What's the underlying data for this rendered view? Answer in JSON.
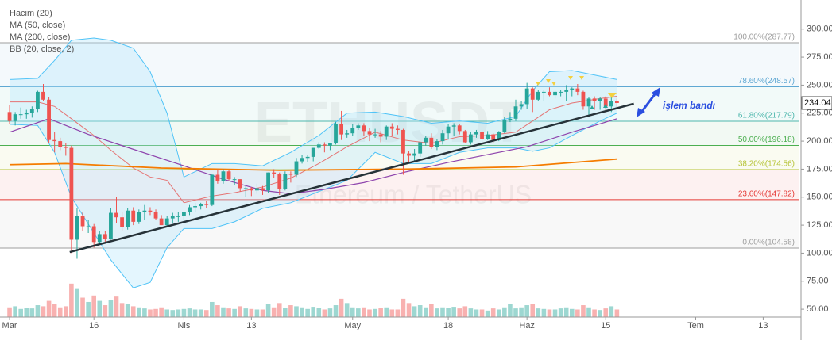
{
  "chart_data": {
    "type": "candlestick",
    "watermark": {
      "symbol": "ETHUSDT",
      "description": "Ethereum / TetherUS"
    },
    "legend": [
      "Hacim (20)",
      "MA (50, close)",
      "MA (200, close)",
      "BB (20, close, 2)"
    ],
    "xlim": [
      -1.7,
      140.3
    ],
    "xticks": [
      {
        "value": 0,
        "label": "Mar"
      },
      {
        "value": 15,
        "label": "16"
      },
      {
        "value": 31,
        "label": "Nis"
      },
      {
        "value": 43,
        "label": "13"
      },
      {
        "value": 61,
        "label": "May"
      },
      {
        "value": 78,
        "label": "18"
      },
      {
        "value": 92,
        "label": "Haz"
      },
      {
        "value": 106,
        "label": "15"
      },
      {
        "value": 122,
        "label": "Tem"
      },
      {
        "value": 134,
        "label": "13"
      }
    ],
    "ylim": [
      43,
      326
    ],
    "yticks": [
      {
        "value": 300,
        "label": "300.00"
      },
      {
        "value": 275,
        "label": "275.00"
      },
      {
        "value": 250,
        "label": "250.00"
      },
      {
        "value": 225,
        "label": "225.00"
      },
      {
        "value": 200,
        "label": "200.00"
      },
      {
        "value": 175,
        "label": "175.00"
      },
      {
        "value": 150,
        "label": "150.00"
      },
      {
        "value": 125,
        "label": "125.00"
      },
      {
        "value": 100,
        "label": "100.00"
      },
      {
        "value": 75,
        "label": "75.00"
      },
      {
        "value": 50,
        "label": "50.00"
      }
    ],
    "up_color": "#26a69a",
    "down_color": "#ef5350",
    "last_price": 234.04,
    "ohlc": [
      [
        226,
        232,
        215,
        218
      ],
      [
        218,
        226,
        214,
        224
      ],
      [
        224,
        230,
        220,
        224
      ],
      [
        224,
        228,
        220,
        225
      ],
      [
        225,
        231,
        221,
        229
      ],
      [
        229,
        245,
        226,
        244
      ],
      [
        244,
        251,
        236,
        237
      ],
      [
        237,
        239,
        198,
        201
      ],
      [
        201,
        208,
        190,
        200
      ],
      [
        200,
        203,
        192,
        195
      ],
      [
        195,
        198,
        187,
        194
      ],
      [
        194,
        196,
        100,
        112
      ],
      [
        112,
        140,
        95,
        133
      ],
      [
        133,
        137,
        120,
        124
      ],
      [
        124,
        130,
        118,
        124
      ],
      [
        124,
        126,
        105,
        110
      ],
      [
        110,
        120,
        108,
        117
      ],
      [
        117,
        120,
        110,
        113
      ],
      [
        113,
        140,
        112,
        136
      ],
      [
        136,
        150,
        127,
        132
      ],
      [
        132,
        137,
        120,
        123
      ],
      [
        123,
        140,
        121,
        138
      ],
      [
        138,
        141,
        125,
        128
      ],
      [
        128,
        139,
        126,
        137
      ],
      [
        137,
        143,
        130,
        138
      ],
      [
        138,
        141,
        134,
        137
      ],
      [
        137,
        139,
        130,
        131
      ],
      [
        131,
        134,
        125,
        125
      ],
      [
        125,
        133,
        123,
        131
      ],
      [
        131,
        136,
        127,
        133
      ],
      [
        133,
        137,
        128,
        133
      ],
      [
        133,
        137,
        128,
        137
      ],
      [
        137,
        143,
        134,
        141
      ],
      [
        141,
        145,
        137,
        142
      ],
      [
        142,
        145,
        139,
        144
      ],
      [
        144,
        147,
        140,
        143
      ],
      [
        143,
        171,
        142,
        170
      ],
      [
        170,
        175,
        162,
        164
      ],
      [
        164,
        175,
        162,
        173
      ],
      [
        173,
        174,
        165,
        166
      ],
      [
        166,
        168,
        161,
        166
      ],
      [
        166,
        166,
        155,
        158
      ],
      [
        158,
        160,
        150,
        158
      ],
      [
        158,
        159,
        151,
        156
      ],
      [
        156,
        162,
        153,
        158
      ],
      [
        158,
        160,
        152,
        156
      ],
      [
        156,
        172,
        154,
        172
      ],
      [
        172,
        175,
        167,
        171
      ],
      [
        171,
        172,
        152,
        157
      ],
      [
        157,
        173,
        156,
        171
      ],
      [
        171,
        173,
        163,
        170
      ],
      [
        170,
        185,
        168,
        182
      ],
      [
        182,
        188,
        180,
        185
      ],
      [
        185,
        188,
        181,
        186
      ],
      [
        186,
        194,
        182,
        194
      ],
      [
        194,
        199,
        193,
        197
      ],
      [
        197,
        199,
        190,
        196
      ],
      [
        196,
        198,
        192,
        198
      ],
      [
        198,
        217,
        197,
        215
      ],
      [
        215,
        227,
        201,
        206
      ],
      [
        206,
        210,
        203,
        207
      ],
      [
        207,
        215,
        205,
        212
      ],
      [
        212,
        216,
        210,
        214
      ],
      [
        214,
        216,
        205,
        209
      ],
      [
        209,
        212,
        200,
        206
      ],
      [
        206,
        211,
        203,
        206
      ],
      [
        206,
        209,
        199,
        204
      ],
      [
        204,
        214,
        201,
        213
      ],
      [
        213,
        216,
        205,
        211
      ],
      [
        211,
        214,
        206,
        210
      ],
      [
        210,
        211,
        170,
        189
      ],
      [
        189,
        191,
        180,
        187
      ],
      [
        187,
        193,
        181,
        189
      ],
      [
        189,
        199,
        186,
        199
      ],
      [
        199,
        205,
        196,
        203
      ],
      [
        203,
        207,
        193,
        195
      ],
      [
        195,
        202,
        192,
        200
      ],
      [
        200,
        210,
        197,
        207
      ],
      [
        207,
        215,
        202,
        213
      ],
      [
        213,
        216,
        205,
        214
      ],
      [
        214,
        215,
        206,
        209
      ],
      [
        209,
        210,
        198,
        199
      ],
      [
        199,
        208,
        197,
        206
      ],
      [
        206,
        210,
        203,
        208
      ],
      [
        208,
        209,
        199,
        202
      ],
      [
        202,
        209,
        201,
        206
      ],
      [
        206,
        207,
        198,
        201
      ],
      [
        201,
        209,
        200,
        208
      ],
      [
        208,
        222,
        207,
        219
      ],
      [
        219,
        226,
        217,
        220
      ],
      [
        220,
        237,
        218,
        231
      ],
      [
        231,
        236,
        228,
        233
      ],
      [
        233,
        252,
        229,
        247
      ],
      [
        247,
        248,
        226,
        237
      ],
      [
        237,
        246,
        236,
        244
      ],
      [
        244,
        246,
        236,
        244
      ],
      [
        244,
        248,
        240,
        241
      ],
      [
        241,
        245,
        238,
        244
      ],
      [
        244,
        246,
        240,
        244
      ],
      [
        244,
        250,
        236,
        246
      ],
      [
        246,
        248,
        240,
        247
      ],
      [
        247,
        251,
        241,
        244
      ],
      [
        244,
        245,
        228,
        231
      ],
      [
        231,
        239,
        222,
        238
      ],
      [
        238,
        240,
        228,
        236
      ],
      [
        236,
        239,
        228,
        238
      ],
      [
        238,
        240,
        225,
        231
      ],
      [
        231,
        239,
        226,
        236
      ],
      [
        236,
        238,
        230,
        234.04
      ]
    ],
    "volume": [
      18,
      20,
      15,
      17,
      16,
      22,
      20,
      30,
      24,
      18,
      20,
      62,
      52,
      36,
      28,
      40,
      30,
      22,
      32,
      38,
      26,
      24,
      20,
      18,
      16,
      14,
      15,
      18,
      14,
      13,
      14,
      15,
      16,
      14,
      14,
      13,
      28,
      22,
      18,
      16,
      15,
      20,
      16,
      15,
      14,
      14,
      24,
      18,
      26,
      17,
      22,
      20,
      18,
      15,
      19,
      17,
      14,
      16,
      22,
      34,
      26,
      18,
      16,
      18,
      14,
      15,
      17,
      18,
      14,
      14,
      34,
      26,
      20,
      22,
      18,
      24,
      16,
      18,
      17,
      19,
      16,
      20,
      16,
      14,
      14,
      12,
      16,
      14,
      18,
      24,
      16,
      18,
      22,
      24,
      16,
      15,
      14,
      14,
      16,
      18,
      15,
      14,
      22,
      18,
      14,
      13,
      16,
      20,
      14
    ],
    "bollinger": {
      "color": "#4fc3f7",
      "basis_color": "#e57373",
      "x": [
        0,
        5,
        8,
        11,
        15,
        18,
        22,
        25,
        28,
        31,
        36,
        40,
        45,
        50,
        55,
        60,
        65,
        70,
        75,
        80,
        85,
        90,
        93,
        96,
        100,
        105,
        108
      ],
      "upper": [
        255,
        256,
        272,
        290,
        292,
        290,
        283,
        262,
        225,
        168,
        180,
        180,
        178,
        190,
        205,
        225,
        226,
        222,
        216,
        218,
        216,
        222,
        245,
        262,
        263,
        258,
        255
      ],
      "basis": [
        235,
        235,
        231,
        220,
        205,
        192,
        176,
        168,
        165,
        145,
        151,
        154,
        159,
        167,
        180,
        195,
        208,
        201,
        198,
        204,
        205,
        208,
        218,
        228,
        234,
        238,
        240
      ],
      "lower": [
        215,
        214,
        190,
        150,
        118,
        94,
        69,
        74,
        105,
        122,
        122,
        128,
        140,
        145,
        155,
        165,
        190,
        180,
        180,
        190,
        194,
        194,
        191,
        194,
        205,
        218,
        225
      ]
    },
    "series": [
      {
        "name": "MA (50, close)",
        "color": "#8e44ad",
        "x": [
          0,
          7,
          14,
          20,
          31,
          38,
          45,
          50,
          56,
          63,
          70,
          78,
          85,
          92,
          100,
          108
        ],
        "values": [
          208,
          220,
          206,
          196,
          178,
          166,
          156,
          153,
          157,
          163,
          172,
          181,
          188,
          195,
          208,
          220
        ]
      },
      {
        "name": "MA (200, close)",
        "color": "#f57c00",
        "x": [
          0,
          10,
          27,
          48,
          70,
          90,
          108
        ],
        "values": [
          179,
          180,
          176,
          174,
          175,
          177,
          184
        ]
      }
    ],
    "fib_levels": [
      {
        "label": "100.00%(287.77)",
        "value": 287.77,
        "color": "#9e9e9e"
      },
      {
        "label": "78.60%(248.57)",
        "value": 248.57,
        "color": "#5fa8d3"
      },
      {
        "label": "61.80%(217.79)",
        "value": 217.79,
        "color": "#4db6ac"
      },
      {
        "label": "50.00%(196.18)",
        "value": 196.18,
        "color": "#4caf50"
      },
      {
        "label": "38.20%(174.56)",
        "value": 174.56,
        "color": "#b5c334"
      },
      {
        "label": "23.60%(147.82)",
        "value": 147.82,
        "color": "#e53935"
      },
      {
        "label": "0.00%(104.58)",
        "value": 104.58,
        "color": "#9e9e9e"
      }
    ],
    "trendline": {
      "x": [
        10.7,
        111
      ],
      "y": [
        101,
        233.4
      ]
    },
    "annotation": "işlem bandı"
  }
}
